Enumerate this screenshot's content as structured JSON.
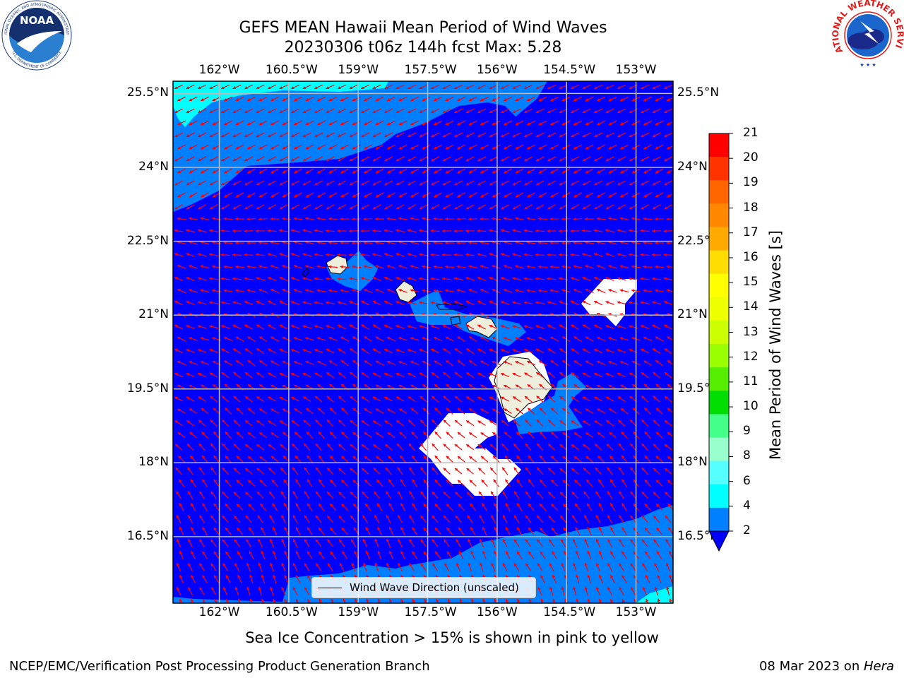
{
  "header": {
    "title_line1": "GEFS MEAN Hawaii Mean Period of Wind Waves",
    "title_line2": "20230306 t06z 144h fcst   Max: 5.28"
  },
  "logos": {
    "noaa": {
      "center_text": "NOAA",
      "ring_text_top": "NATIONAL OCEANIC AND ATMOSPHERIC ADMINISTRATION",
      "ring_text_bottom": "U.S. DEPARTMENT OF COMMERCE"
    },
    "nws": {
      "ring_text": "NATIONAL WEATHER SERVICE"
    }
  },
  "map": {
    "lon_labels": [
      "162°W",
      "160.5°W",
      "159°W",
      "157.5°W",
      "156°W",
      "154.5°W",
      "153°W"
    ],
    "lat_labels": [
      "25.5°N",
      "24°N",
      "22.5°N",
      "21°N",
      "19.5°N",
      "18°N",
      "16.5°N"
    ],
    "lon_values": [
      -162,
      -160.5,
      -159,
      -157.5,
      -156,
      -154.5,
      -153
    ],
    "lat_values": [
      25.5,
      24,
      22.5,
      21,
      19.5,
      18,
      16.5
    ],
    "lon_range": [
      -163,
      -152.2
    ],
    "lat_range": [
      15.15,
      25.75
    ],
    "colors": {
      "ocean_low": "#0000ff",
      "ocean_mid": "#0080ff",
      "ocean_high": "#00ffff",
      "land": "#eeeedd",
      "missing": "#ffffff",
      "arrow": "#ff0000",
      "grid": "#bbbbbb"
    },
    "legend_label": "Wind Wave Direction (unscaled)"
  },
  "colorbar": {
    "label": "Mean Period of Wind Waves [s]",
    "ticks": [
      "21",
      "20",
      "19",
      "18",
      "17",
      "16",
      "15",
      "14",
      "13",
      "12",
      "11",
      "10",
      "9",
      "8",
      "6",
      "4",
      "2"
    ],
    "colors_top_to_bottom": [
      "#ff0000",
      "#ff3300",
      "#ff6600",
      "#ff8800",
      "#ffaa00",
      "#ffdd00",
      "#ffff00",
      "#eeff00",
      "#ccff00",
      "#99ff00",
      "#55ee00",
      "#00dd00",
      "#44ff88",
      "#99ffcc",
      "#55ffff",
      "#00ffff",
      "#0080ff"
    ],
    "under_color": "#0000ff"
  },
  "notes": {
    "sea_ice": "Sea Ice Concentration > 15% is shown in pink to yellow"
  },
  "footer": {
    "left": "NCEP/EMC/Verification Post Processing Product Generation Branch",
    "right_date": "08 Mar 2023 on ",
    "right_host": "Hera"
  }
}
